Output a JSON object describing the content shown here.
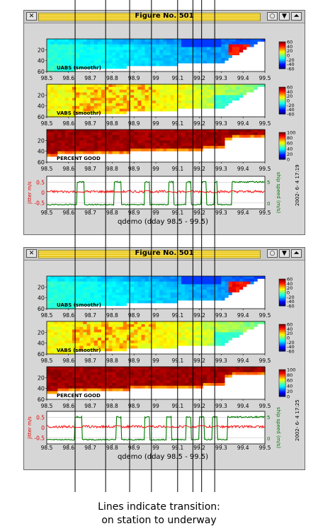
{
  "window_title": "Figure No. 501",
  "title_buttons": {
    "close": "✕",
    "iconify": "○",
    "menu": "▼",
    "raise": "⏶"
  },
  "caption": {
    "line1": "Lines indicate transition:",
    "line2": "on station to underway"
  },
  "chart_data": [
    {
      "type": "heatmap",
      "panels": [
        {
          "label": "UABS (smoothr)",
          "ylim": [
            60,
            0
          ],
          "yticks": [
            "20",
            "40",
            "60"
          ],
          "colorbar_ticks": [
            "60",
            "40",
            "20",
            "0",
            "-20",
            "-40",
            "-60"
          ],
          "colorbar_range": [
            -60,
            60
          ]
        },
        {
          "label": "VABS (smoothr)",
          "ylim": [
            60,
            0
          ],
          "yticks": [
            "20",
            "40",
            "60"
          ],
          "colorbar_ticks": [
            "60",
            "40",
            "20",
            "0",
            "-20",
            "-40",
            "-60"
          ],
          "colorbar_range": [
            -60,
            60
          ]
        },
        {
          "label": "PERCENT GOOD",
          "ylim": [
            60,
            0
          ],
          "yticks": [
            "20",
            "40",
            "60"
          ],
          "colorbar_ticks": [
            "100",
            "80",
            "60",
            "40",
            "20",
            "0"
          ],
          "colorbar_range": [
            0,
            100
          ]
        }
      ],
      "x_ticks": [
        "98.5",
        "98.6",
        "98.7",
        "98.8",
        "98.9",
        "99",
        "99.1",
        "99.2",
        "99.3",
        "99.4",
        "99.5"
      ],
      "xlim": [
        98.5,
        99.5
      ],
      "line_panel": {
        "type": "line",
        "ylabel_left": "jitter m/s",
        "ylabel_right": "ship speed (m/s)",
        "yticks_left": [
          "0.5",
          "0",
          "-0.5"
        ],
        "yticks_right": [
          "5",
          "0"
        ],
        "series": [
          {
            "name": "jitter m/s",
            "color": "#ff0000",
            "level": 0.05
          },
          {
            "name": "ship speed (m/s)",
            "color": "#007a00",
            "underway_intervals": [
              [
                98.64,
                98.67
              ],
              [
                98.81,
                98.84
              ],
              [
                98.95,
                98.97
              ],
              [
                99.06,
                99.08
              ],
              [
                99.14,
                99.16
              ],
              [
                99.21,
                99.23
              ],
              [
                99.27,
                99.28
              ],
              [
                99.35,
                99.5
              ]
            ]
          }
        ]
      },
      "xlabel": "qdemo (dday 98.5 - 99.5)",
      "timestamp": "2002- 6- 4  17:19"
    },
    {
      "type": "heatmap",
      "panels": [
        {
          "label": "UABS (smoothr)",
          "ylim": [
            60,
            0
          ],
          "yticks": [
            "20",
            "40",
            "60"
          ],
          "colorbar_ticks": [
            "60",
            "40",
            "20",
            "0",
            "-20",
            "-40",
            "-60"
          ],
          "colorbar_range": [
            -60,
            60
          ]
        },
        {
          "label": "VABS (smoothr)",
          "ylim": [
            60,
            0
          ],
          "yticks": [
            "20",
            "40",
            "60"
          ],
          "colorbar_ticks": [
            "60",
            "40",
            "20",
            "0",
            "-20",
            "-40",
            "-60"
          ],
          "colorbar_range": [
            -60,
            60
          ]
        },
        {
          "label": "PERCENT GOOD",
          "ylim": [
            60,
            0
          ],
          "yticks": [
            "20",
            "40",
            "60"
          ],
          "colorbar_ticks": [
            "100",
            "80",
            "60",
            "40",
            "20",
            "0"
          ],
          "colorbar_range": [
            0,
            100
          ]
        }
      ],
      "x_ticks": [
        "98.5",
        "98.6",
        "98.7",
        "98.8",
        "98.9",
        "99",
        "99.1",
        "99.2",
        "99.3",
        "99.4",
        "99.5"
      ],
      "xlim": [
        98.5,
        99.5
      ],
      "line_panel": {
        "type": "line",
        "ylabel_left": "jitter m/s",
        "ylabel_right": "ship speed (m/s)",
        "yticks_left": [
          "0.5",
          "0",
          "-0.5"
        ],
        "yticks_right": [
          "5",
          "0"
        ],
        "series": [
          {
            "name": "jitter m/s",
            "color": "#ff0000",
            "level": 0.05
          },
          {
            "name": "ship speed (m/s)",
            "color": "#007a00",
            "underway_intervals": [
              [
                98.63,
                98.66
              ],
              [
                98.82,
                98.84
              ],
              [
                98.95,
                98.97
              ],
              [
                99.05,
                99.07
              ],
              [
                99.14,
                99.16
              ],
              [
                99.2,
                99.22
              ],
              [
                99.26,
                99.28
              ],
              [
                99.33,
                99.5
              ]
            ]
          }
        ]
      },
      "xlabel": "qdemo (dday 98.5 - 99.5)",
      "timestamp": "2002- 6- 4  17:25"
    }
  ],
  "transition_lines": {
    "type": "annotation",
    "x_values": [
      98.63,
      98.77,
      98.88,
      98.98,
      99.1,
      99.17,
      99.21,
      99.27
    ]
  }
}
